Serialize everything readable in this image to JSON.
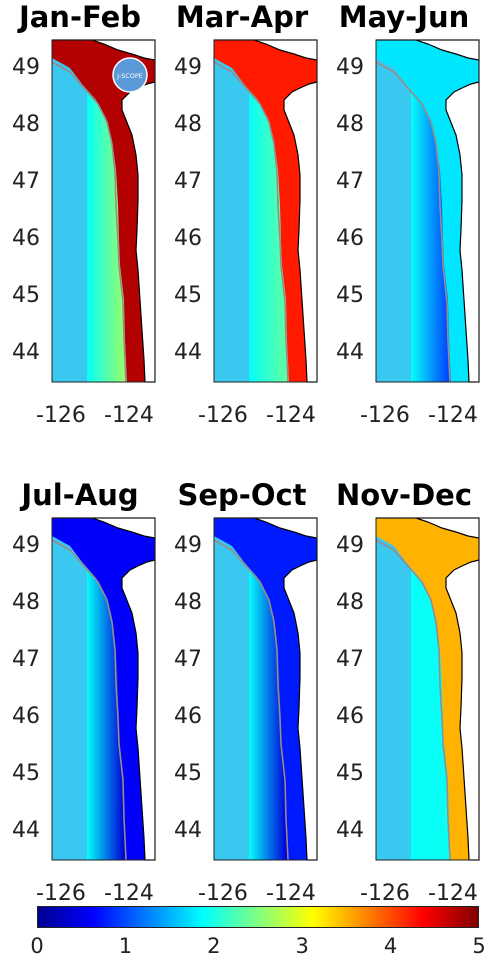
{
  "panels": [
    {
      "title": "Jan-Feb",
      "level": 0.95,
      "logo": true
    },
    {
      "title": "Mar-Apr",
      "level": 0.85,
      "logo": false
    },
    {
      "title": "May-Jun",
      "level": 0.35,
      "logo": false
    },
    {
      "title": "Jul-Aug",
      "level": 0.12,
      "logo": false
    },
    {
      "title": "Sep-Oct",
      "level": 0.15,
      "logo": false
    },
    {
      "title": "Nov-Dec",
      "level": 0.7,
      "logo": false
    }
  ],
  "logo_text": "J-SCOPE",
  "y_ticks": [
    "49",
    "48",
    "47",
    "46",
    "45",
    "44"
  ],
  "x_ticks": [
    "-126",
    "-124"
  ],
  "colorbar": {
    "ticks": [
      "0",
      "1",
      "2",
      "3",
      "4",
      "5"
    ],
    "min": 0,
    "max": 5,
    "colors": [
      "#00008f",
      "#0000ff",
      "#0080ff",
      "#00ffff",
      "#80ff80",
      "#ffff00",
      "#ff8000",
      "#ff0000",
      "#800000"
    ]
  },
  "colors": {
    "land": "#ffffff",
    "coastline": "#000000",
    "isobath": "#9a8a8a",
    "offshore": "#38c8f0"
  }
}
